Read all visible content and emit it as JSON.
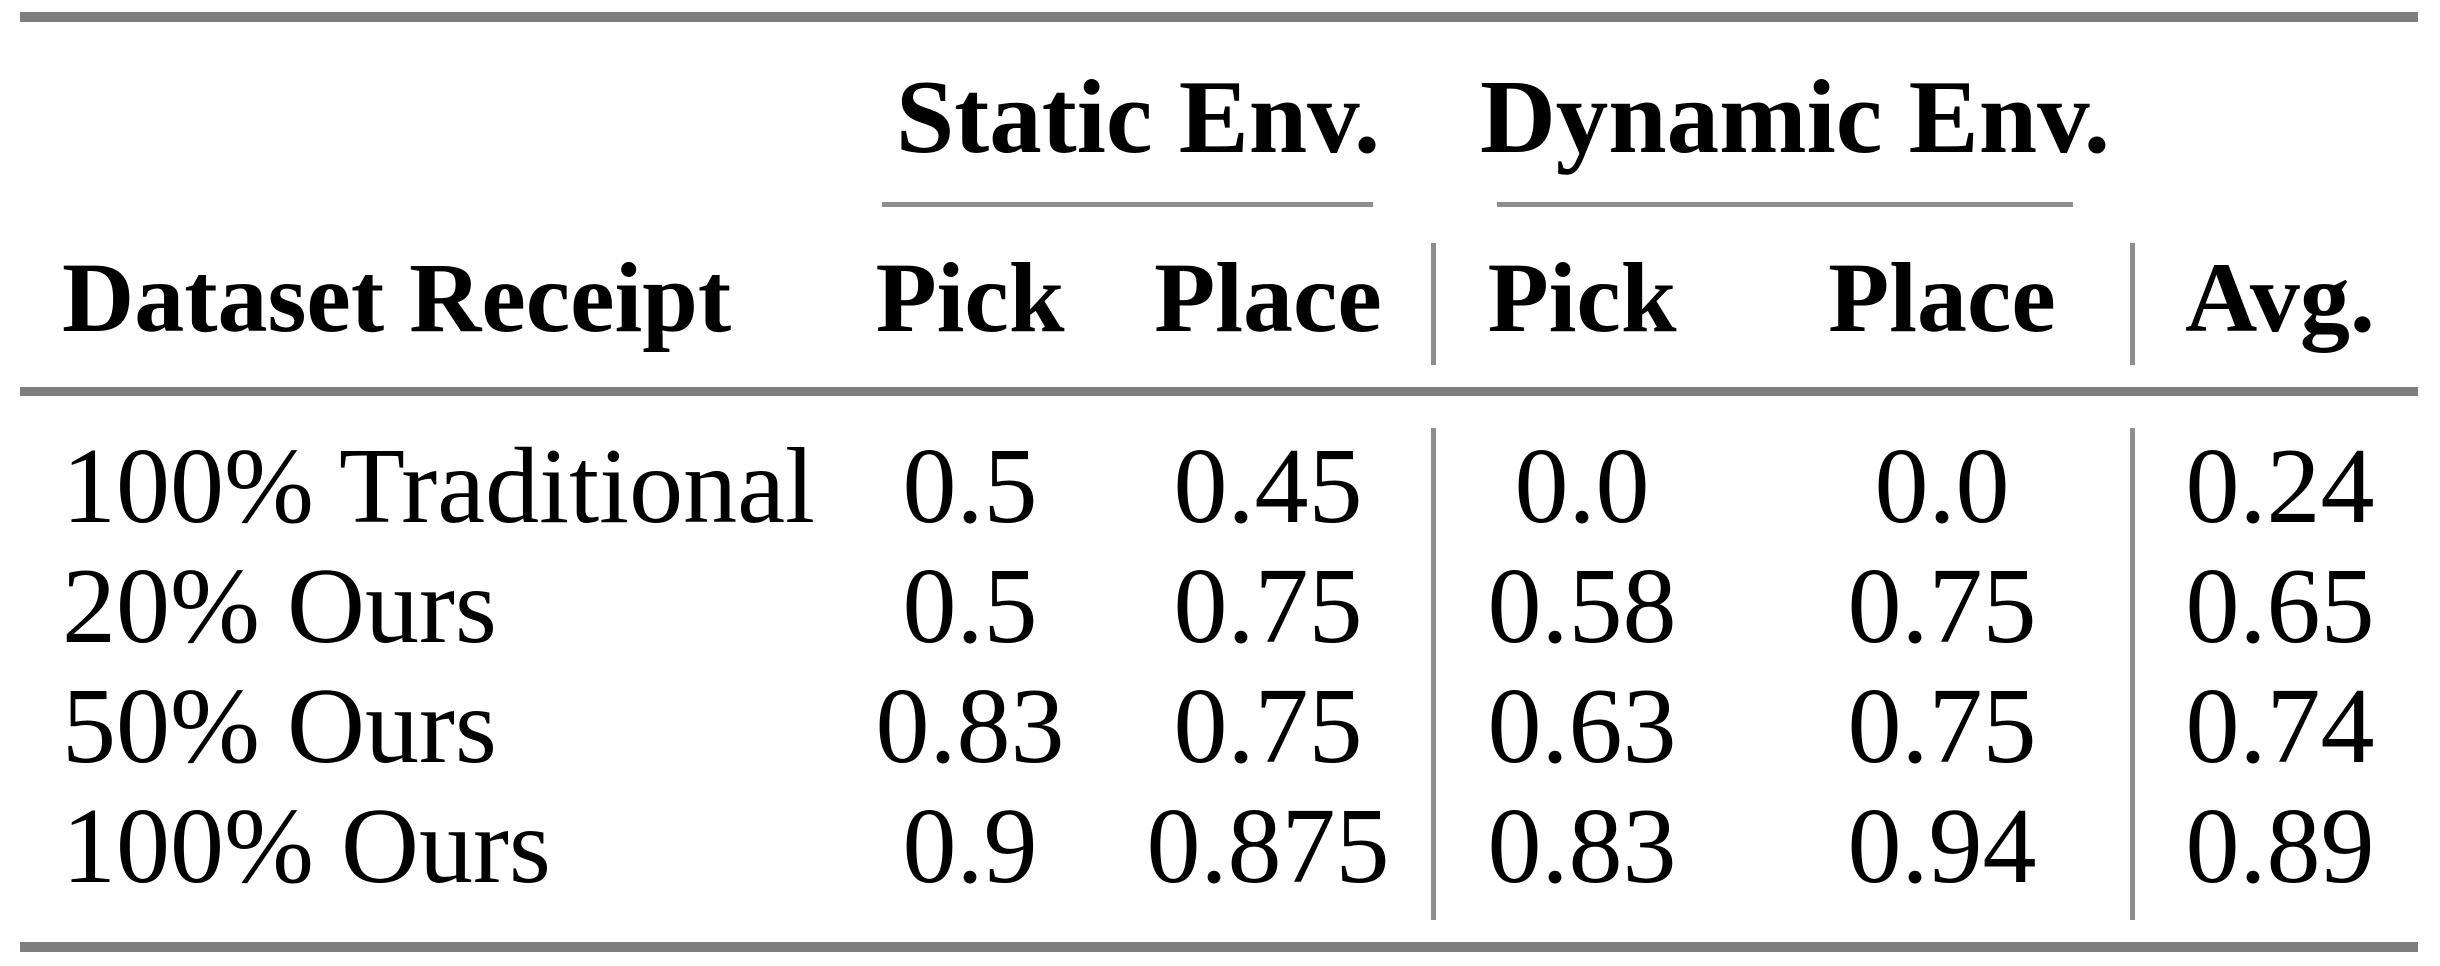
{
  "colors": {
    "rule_thick": "#7e7e7e",
    "rule_thin": "#8e8e8e",
    "text": "#000000",
    "background": "#ffffff"
  },
  "table": {
    "group_headers": [
      {
        "label": "Static Env."
      },
      {
        "label": "Dynamic Env."
      }
    ],
    "column_headers": {
      "dataset": "Dataset Receipt",
      "static_pick": "Pick",
      "static_place": "Place",
      "dynamic_pick": "Pick",
      "dynamic_place": "Place",
      "avg": "Avg."
    },
    "rows": [
      {
        "dataset": "100% Traditional",
        "static_pick": "0.5",
        "static_place": "0.45",
        "dynamic_pick": "0.0",
        "dynamic_place": "0.0",
        "avg": "0.24"
      },
      {
        "dataset": "20% Ours",
        "static_pick": "0.5",
        "static_place": "0.75",
        "dynamic_pick": "0.58",
        "dynamic_place": "0.75",
        "avg": "0.65"
      },
      {
        "dataset": "50% Ours",
        "static_pick": "0.83",
        "static_place": "0.75",
        "dynamic_pick": "0.63",
        "dynamic_place": "0.75",
        "avg": "0.74"
      },
      {
        "dataset": "100% Ours",
        "static_pick": "0.9",
        "static_place": "0.875",
        "dynamic_pick": "0.83",
        "dynamic_place": "0.94",
        "avg": "0.89"
      }
    ]
  },
  "chart_data": {
    "type": "table",
    "columns": [
      "Dataset Receipt",
      "Static Env. Pick",
      "Static Env. Place",
      "Dynamic Env. Pick",
      "Dynamic Env. Place",
      "Avg."
    ],
    "rows": [
      [
        "100% Traditional",
        0.5,
        0.45,
        0.0,
        0.0,
        0.24
      ],
      [
        "20% Ours",
        0.5,
        0.75,
        0.58,
        0.75,
        0.65
      ],
      [
        "50% Ours",
        0.83,
        0.75,
        0.63,
        0.75,
        0.74
      ],
      [
        "100% Ours",
        0.9,
        0.875,
        0.83,
        0.94,
        0.89
      ]
    ]
  }
}
